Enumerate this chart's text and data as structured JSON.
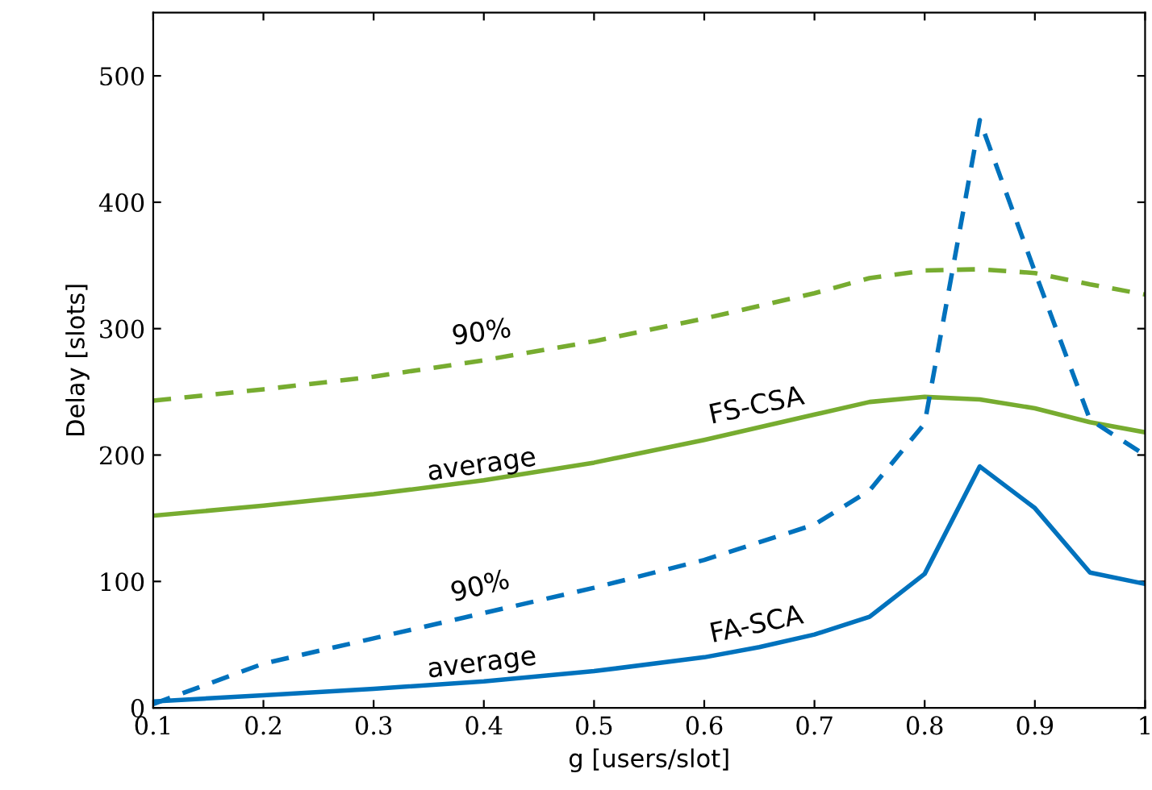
{
  "chart_data": {
    "type": "line",
    "xlabel": "g [users/slot]",
    "ylabel": "Delay [slots]",
    "xlim": [
      0.1,
      1
    ],
    "ylim": [
      0,
      550
    ],
    "xticks": [
      0.1,
      0.2,
      0.3,
      0.4,
      0.5,
      0.6,
      0.7,
      0.8,
      0.9,
      1
    ],
    "yticks": [
      0,
      100,
      200,
      300,
      400,
      500
    ],
    "grid": false,
    "legend": false,
    "marker": "none",
    "series": [
      {
        "color": "#77ac30",
        "line_style": "dashed",
        "x": [
          0.1,
          0.2,
          0.3,
          0.4,
          0.5,
          0.6,
          0.7,
          0.75,
          0.8,
          0.85,
          0.9,
          0.95,
          1.0
        ],
        "values": [
          243,
          252,
          262,
          275,
          290,
          308,
          328,
          340,
          346,
          347,
          344,
          335,
          327
        ]
      },
      {
        "color": "#77ac30",
        "line_style": "solid",
        "x": [
          0.1,
          0.2,
          0.3,
          0.4,
          0.5,
          0.6,
          0.7,
          0.75,
          0.8,
          0.85,
          0.9,
          0.95,
          1.0
        ],
        "values": [
          152,
          160,
          169,
          180,
          194,
          212,
          232,
          242,
          246,
          244,
          237,
          226,
          218
        ]
      },
      {
        "color": "#0072bd",
        "line_style": "dashed",
        "x": [
          0.1,
          0.2,
          0.3,
          0.4,
          0.5,
          0.6,
          0.7,
          0.75,
          0.8,
          0.85,
          0.9,
          0.95,
          1.0
        ],
        "values": [
          3,
          35,
          55,
          75,
          95,
          117,
          145,
          172,
          225,
          465,
          345,
          228,
          200
        ]
      },
      {
        "color": "#0072bd",
        "line_style": "solid",
        "x": [
          0.1,
          0.2,
          0.3,
          0.4,
          0.5,
          0.6,
          0.65,
          0.7,
          0.75,
          0.8,
          0.85,
          0.9,
          0.95,
          1.0
        ],
        "values": [
          5,
          10,
          15,
          21,
          29,
          40,
          48,
          58,
          72,
          106,
          191,
          158,
          107,
          98
        ]
      }
    ],
    "annotations": [
      "90%",
      "average",
      "FS-CSA",
      "90%",
      "average",
      "FA-SCA"
    ]
  }
}
